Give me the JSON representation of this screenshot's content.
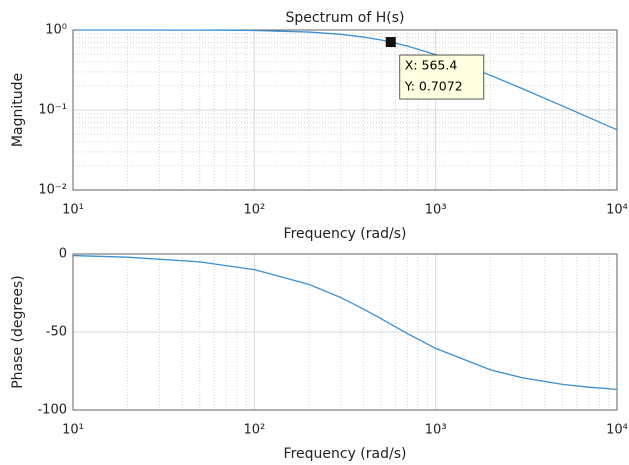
{
  "chart_data": [
    {
      "type": "line",
      "title": "Spectrum of H(s)",
      "xlabel": "Frequency (rad/s)",
      "ylabel": "Magnitude",
      "xscale": "log",
      "yscale": "log",
      "grid": true,
      "color": "#3c8fd0",
      "xlim": [
        10,
        10000
      ],
      "ylim": [
        0.01,
        1
      ],
      "xticks": [
        {
          "value": 10,
          "label": "10¹"
        },
        {
          "value": 100,
          "label": "10²"
        },
        {
          "value": 1000,
          "label": "10³"
        },
        {
          "value": 10000,
          "label": "10⁴"
        }
      ],
      "yticks": [
        {
          "value": 0.01,
          "label": "10⁻²"
        },
        {
          "value": 0.1,
          "label": "10⁻¹"
        },
        {
          "value": 1,
          "label": "10⁰"
        }
      ],
      "xminorticks": [
        20,
        30,
        40,
        50,
        60,
        70,
        80,
        90,
        200,
        300,
        400,
        500,
        600,
        700,
        800,
        900,
        2000,
        3000,
        4000,
        5000,
        6000,
        7000,
        8000,
        9000
      ],
      "yminorticks": [
        0.02,
        0.03,
        0.04,
        0.05,
        0.06,
        0.07,
        0.08,
        0.09,
        0.2,
        0.3,
        0.4,
        0.5,
        0.6,
        0.7,
        0.8,
        0.9
      ],
      "x": [
        10,
        20,
        50,
        100,
        200,
        300,
        400,
        500,
        565.4,
        700,
        1000,
        2000,
        3000,
        5000,
        7000,
        10000
      ],
      "values": [
        0.9998,
        0.9994,
        0.9961,
        0.9847,
        0.9428,
        0.8834,
        0.8164,
        0.7491,
        0.7072,
        0.6283,
        0.4922,
        0.2721,
        0.1852,
        0.1124,
        0.0805,
        0.0565
      ],
      "datatip": {
        "x": 565.4,
        "y": 0.7072,
        "x_label": "X: 565.4",
        "y_label": "Y: 0.7072"
      }
    },
    {
      "type": "line",
      "xlabel": "Frequency (rad/s)",
      "ylabel": "Phase (degrees)",
      "xscale": "log",
      "yscale": "linear",
      "grid": true,
      "color": "#3c8fd0",
      "xlim": [
        10,
        10000
      ],
      "ylim": [
        -100,
        0
      ],
      "xticks": [
        {
          "value": 10,
          "label": "10¹"
        },
        {
          "value": 100,
          "label": "10²"
        },
        {
          "value": 1000,
          "label": "10³"
        },
        {
          "value": 10000,
          "label": "10⁴"
        }
      ],
      "yticks": [
        -100,
        -50,
        0
      ],
      "xminorticks": [
        20,
        30,
        40,
        50,
        60,
        70,
        80,
        90,
        200,
        300,
        400,
        500,
        600,
        700,
        800,
        900,
        2000,
        3000,
        4000,
        5000,
        6000,
        7000,
        8000,
        9000
      ],
      "x": [
        10,
        20,
        50,
        100,
        200,
        300,
        400,
        500,
        565.4,
        700,
        1000,
        2000,
        3000,
        5000,
        7000,
        10000
      ],
      "values": [
        -1.01,
        -2.03,
        -5.05,
        -10.03,
        -19.48,
        -27.94,
        -35.28,
        -41.49,
        -45,
        -51.08,
        -60.51,
        -74.22,
        -79.33,
        -83.55,
        -85.38,
        -86.76
      ]
    }
  ]
}
